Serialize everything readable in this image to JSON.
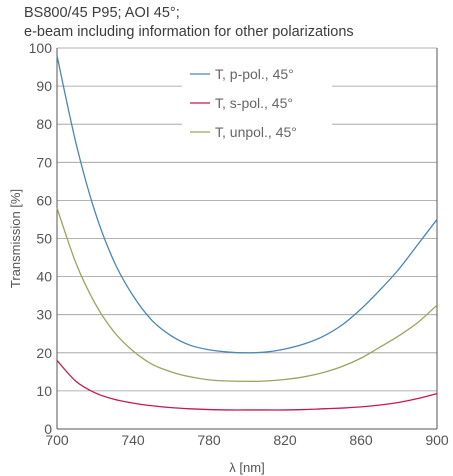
{
  "chart_data": {
    "type": "line",
    "title": "BS800/45 P95; AOI 45°;",
    "subtitle": "e-beam including information for other polarizations",
    "xlabel": "λ [nm]",
    "ylabel": "Transmission [%]",
    "xlim": [
      700,
      900
    ],
    "ylim": [
      0,
      100
    ],
    "xticks": [
      700,
      740,
      780,
      820,
      860,
      900
    ],
    "yticks": [
      0,
      10,
      20,
      30,
      40,
      50,
      60,
      70,
      80,
      90,
      100
    ],
    "grid": "horizontal",
    "legend_position": "top-center",
    "x": [
      700,
      710,
      720,
      730,
      740,
      750,
      760,
      770,
      780,
      790,
      800,
      810,
      820,
      830,
      840,
      850,
      860,
      870,
      880,
      890,
      900
    ],
    "series": [
      {
        "name": "T, p-pol., 45°",
        "color": "#4a86b5",
        "values": [
          98,
          75,
          57,
          44,
          35,
          28.5,
          24.5,
          22,
          20.8,
          20.2,
          20,
          20.2,
          21,
          22.3,
          24.3,
          27.3,
          31.5,
          36.5,
          42,
          48.5,
          55
        ]
      },
      {
        "name": "T, s-pol., 45°",
        "color": "#c8184a",
        "values": [
          18,
          12.5,
          9.5,
          7.8,
          6.8,
          6.1,
          5.6,
          5.3,
          5.1,
          5,
          5,
          5,
          5,
          5.1,
          5.3,
          5.5,
          5.8,
          6.3,
          7,
          8,
          9.3
        ]
      },
      {
        "name": "T, unpol., 45°",
        "color": "#9fa160",
        "values": [
          58,
          43.5,
          33,
          25.5,
          20.5,
          17,
          15,
          13.7,
          12.9,
          12.6,
          12.5,
          12.6,
          13,
          13.7,
          14.8,
          16.4,
          18.6,
          21.5,
          24.5,
          28,
          32.5
        ]
      }
    ]
  }
}
